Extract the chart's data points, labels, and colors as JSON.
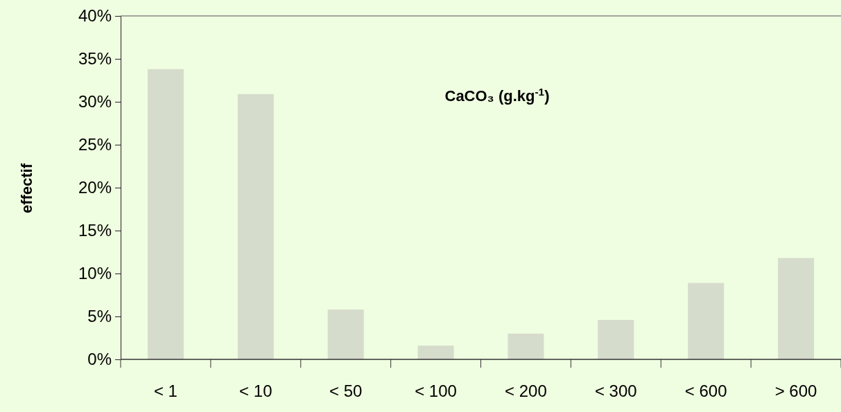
{
  "chart_data": {
    "type": "bar",
    "title": "CaCO₃ (g.kg$^{-1}$)",
    "ylabel": "effectif",
    "categories": [
      "< 1",
      "< 10",
      "< 50",
      "< 100",
      "< 200",
      "< 300",
      "< 600",
      "> 600"
    ],
    "values": [
      33.8,
      30.9,
      5.8,
      1.6,
      3.0,
      4.6,
      8.9,
      11.8
    ],
    "color": "#d6dccb",
    "ylim": [
      0,
      40
    ],
    "yticks": [
      {
        "value": 0,
        "label": "0%"
      },
      {
        "value": 5,
        "label": "5%"
      },
      {
        "value": 10,
        "label": "10%"
      },
      {
        "value": 15,
        "label": "15%"
      },
      {
        "value": 20,
        "label": "20%"
      },
      {
        "value": 25,
        "label": "25%"
      },
      {
        "value": 30,
        "label": "30%"
      },
      {
        "value": 35,
        "label": "35%"
      },
      {
        "value": 40,
        "label": "40%"
      }
    ],
    "grid": false
  }
}
